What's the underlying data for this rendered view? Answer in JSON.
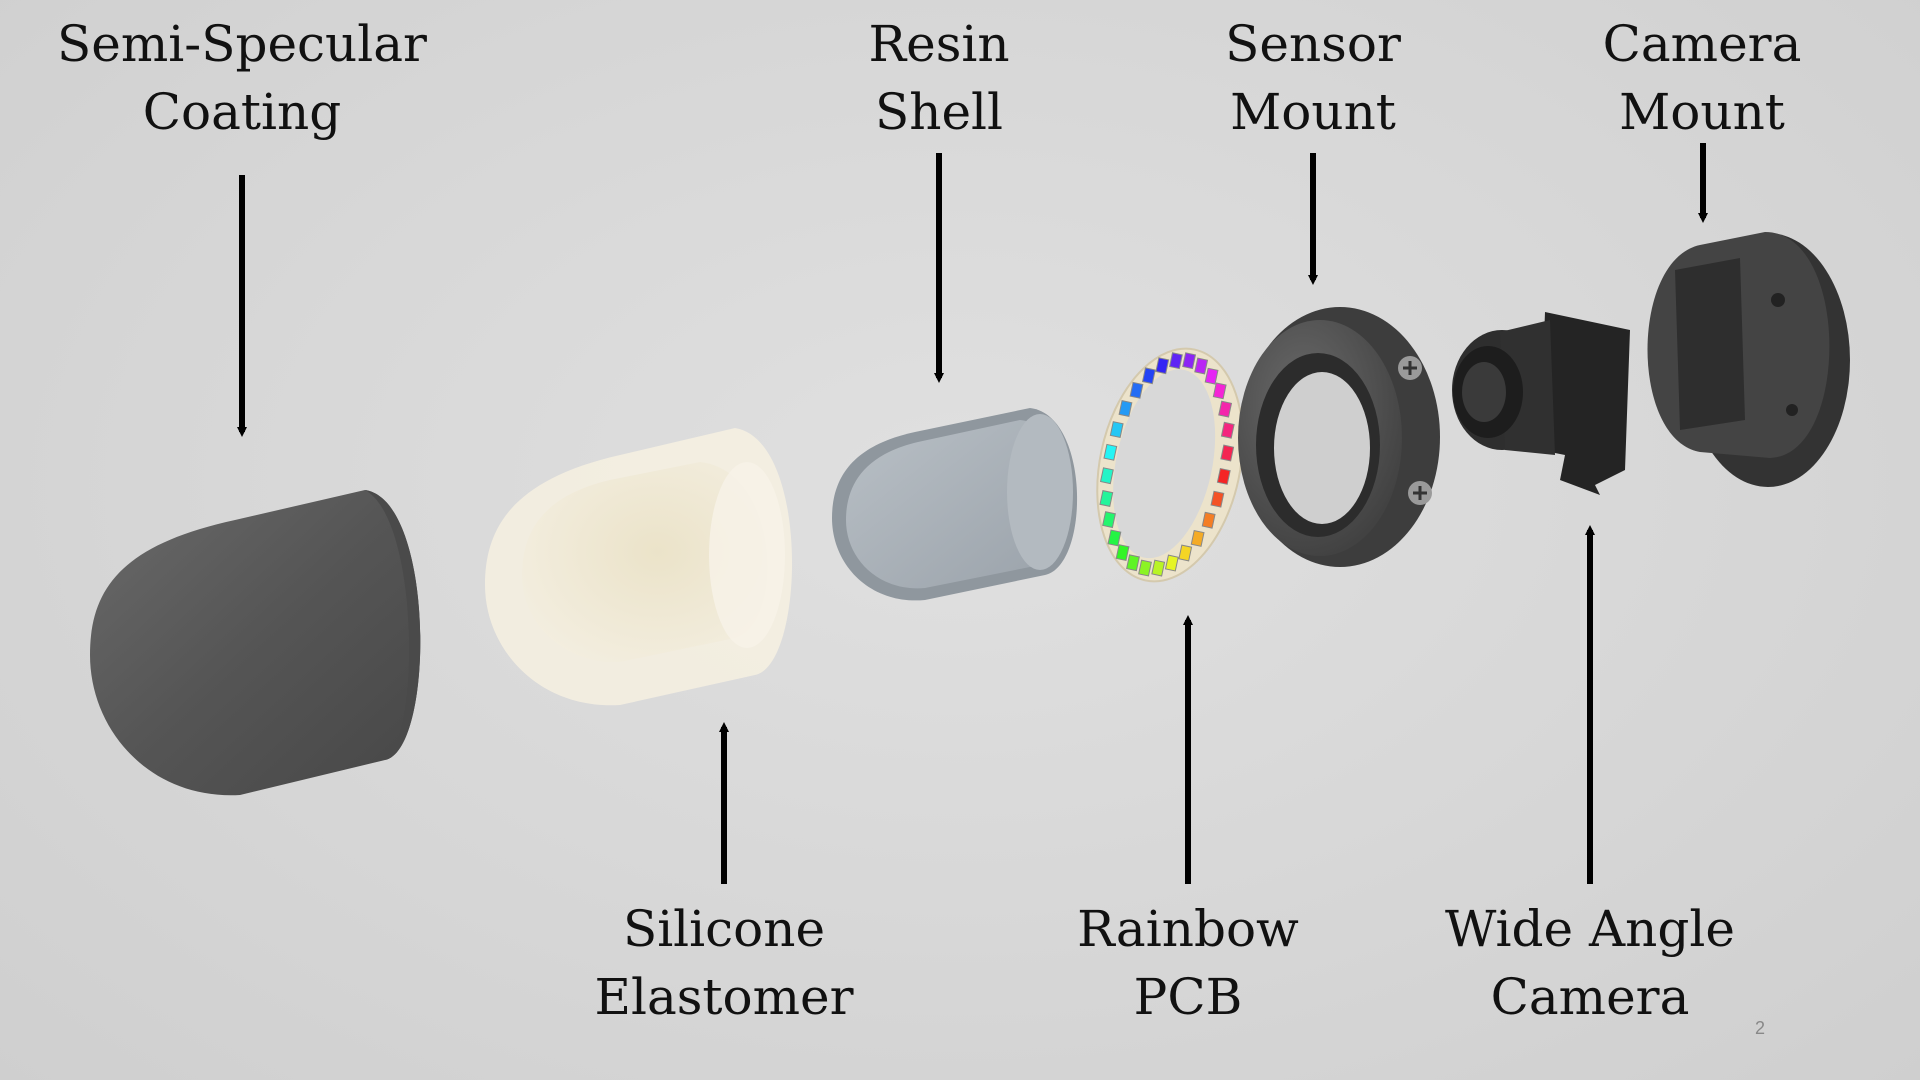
{
  "slide": {
    "page_number": "2",
    "labels": {
      "coating": {
        "line1": "Semi-Specular",
        "line2": "Coating"
      },
      "elastomer": {
        "line1": "Silicone",
        "line2": "Elastomer"
      },
      "shell": {
        "line1": "Resin",
        "line2": "Shell"
      },
      "pcb": {
        "line1": "Rainbow",
        "line2": "PCB"
      },
      "sensor_mount": {
        "line1": "Sensor",
        "line2": "Mount"
      },
      "camera": {
        "line1": "Wide Angle",
        "line2": "Camera"
      },
      "camera_mount": {
        "line1": "Camera",
        "line2": "Mount"
      }
    }
  },
  "colors": {
    "background": "#d8d8d8",
    "coating": "#555555",
    "elastomer": "#f1ecdc",
    "shell": "#a9b1b8",
    "pcb_ring": "#efe6cf",
    "sensor_mount": "#4f4f4f",
    "camera": "#2b2b2b",
    "camera_mount": "#3f3f3f",
    "arrow": "#000000"
  }
}
